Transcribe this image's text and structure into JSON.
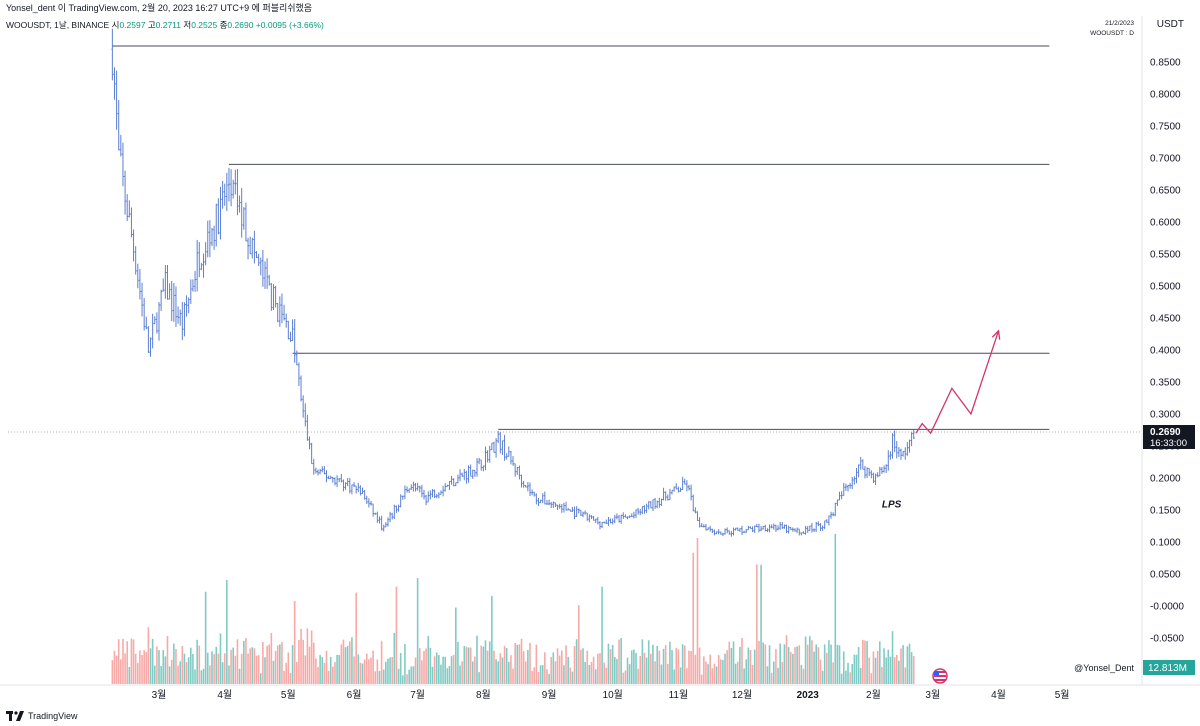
{
  "header": {
    "attribution": "Yonsel_dent 이 TradingView.com, 2월 20, 2023 16:27 UTC+9 에 퍼블리쉬했음"
  },
  "legend": {
    "symbol": "WOOUSDT, 1날, BINANCE",
    "open_label": "시",
    "open": "0.2597",
    "high_label": "고",
    "high": "0.2711",
    "low_label": "저",
    "low": "0.2525",
    "close_label": "종",
    "close": "0.2690",
    "change": "+0.0095 (+3.66%)"
  },
  "corner": {
    "date": "21/2/2023",
    "ticker": "WOOUSDT : D",
    "currency": "USDT"
  },
  "price_badge": {
    "price": "0.2690",
    "countdown": "16:33:00"
  },
  "volume_badge": "12.813M",
  "author_handle": "@Yonsel_Dent",
  "footer": {
    "brand": "TradingView"
  },
  "colors": {
    "bar": "#5b7fd1",
    "vol_up": "#80cbc4",
    "vol_down": "#f7a9a7",
    "level_line": "#4a4e5c",
    "projection": "#d6336c",
    "badge_bg": "#131722"
  },
  "chart_data": {
    "type": "ohlc-bar",
    "symbol": "WOOUSDT",
    "interval": "1D",
    "y_axis": {
      "ticks": [
        0.85,
        0.8,
        0.75,
        0.7,
        0.65,
        0.6,
        0.55,
        0.5,
        0.45,
        0.4,
        0.35,
        0.3,
        0.25,
        0.2,
        0.15,
        0.1,
        0.05,
        -0.0,
        -0.05
      ],
      "tick_labels": [
        "0.8500",
        "0.8000",
        "0.7500",
        "0.7000",
        "0.6500",
        "0.6000",
        "0.5500",
        "0.5000",
        "0.4500",
        "0.4000",
        "0.3500",
        "0.3000",
        "0.2500",
        "0.2000",
        "0.1500",
        "0.1000",
        "0.0500",
        "-0.0000",
        "-0.0500"
      ]
    },
    "x_axis": {
      "ticks": [
        "2022-03-01",
        "2022-04-01",
        "2022-05-01",
        "2022-06-01",
        "2022-07-01",
        "2022-08-01",
        "2022-09-01",
        "2022-10-01",
        "2022-11-01",
        "2022-12-01",
        "2023-01-01",
        "2023-02-01",
        "2023-03-01",
        "2023-04-01",
        "2023-05-01"
      ],
      "tick_labels": [
        "3월",
        "4월",
        "5월",
        "6월",
        "7월",
        "8월",
        "9월",
        "10월",
        "11월",
        "12월",
        "2023",
        "2월",
        "3월",
        "4월",
        "5월"
      ]
    },
    "price_path": [
      [
        "2022-02-07",
        0.87
      ],
      [
        "2022-02-10",
        0.7
      ],
      [
        "2022-02-14",
        0.62
      ],
      [
        "2022-02-18",
        0.54
      ],
      [
        "2022-02-24",
        0.4
      ],
      [
        "2022-03-04",
        0.5
      ],
      [
        "2022-03-12",
        0.44
      ],
      [
        "2022-03-20",
        0.55
      ],
      [
        "2022-03-28",
        0.6
      ],
      [
        "2022-04-03",
        0.66
      ],
      [
        "2022-04-08",
        0.62
      ],
      [
        "2022-04-16",
        0.54
      ],
      [
        "2022-04-25",
        0.47
      ],
      [
        "2022-05-03",
        0.42
      ],
      [
        "2022-05-08",
        0.3
      ],
      [
        "2022-05-13",
        0.21
      ],
      [
        "2022-05-22",
        0.2
      ],
      [
        "2022-06-04",
        0.18
      ],
      [
        "2022-06-15",
        0.12
      ],
      [
        "2022-06-27",
        0.19
      ],
      [
        "2022-07-05",
        0.17
      ],
      [
        "2022-07-20",
        0.2
      ],
      [
        "2022-07-30",
        0.22
      ],
      [
        "2022-08-08",
        0.26
      ],
      [
        "2022-08-15",
        0.22
      ],
      [
        "2022-08-25",
        0.17
      ],
      [
        "2022-09-10",
        0.15
      ],
      [
        "2022-09-25",
        0.13
      ],
      [
        "2022-10-10",
        0.14
      ],
      [
        "2022-10-25",
        0.17
      ],
      [
        "2022-11-05",
        0.19
      ],
      [
        "2022-11-10",
        0.13
      ],
      [
        "2022-11-20",
        0.115
      ],
      [
        "2022-12-05",
        0.12
      ],
      [
        "2022-12-15",
        0.125
      ],
      [
        "2022-12-28",
        0.115
      ],
      [
        "2023-01-10",
        0.13
      ],
      [
        "2023-01-18",
        0.18
      ],
      [
        "2023-01-26",
        0.22
      ],
      [
        "2023-02-02",
        0.2
      ],
      [
        "2023-02-07",
        0.22
      ],
      [
        "2023-02-10",
        0.26
      ],
      [
        "2023-02-14",
        0.23
      ],
      [
        "2023-02-17",
        0.25
      ],
      [
        "2023-02-21",
        0.269
      ]
    ],
    "horizontal_levels": [
      {
        "price": 0.875,
        "from": "2022-02-07",
        "to": "2023-04-25"
      },
      {
        "price": 0.69,
        "from": "2022-04-03",
        "to": "2023-04-25"
      },
      {
        "price": 0.395,
        "from": "2022-05-03",
        "to": "2023-04-25"
      },
      {
        "price": 0.276,
        "from": "2022-08-08",
        "to": "2023-04-25"
      }
    ],
    "projection_path": [
      [
        "2023-02-21",
        0.27
      ],
      [
        "2023-02-24",
        0.285
      ],
      [
        "2023-02-28",
        0.27
      ],
      [
        "2023-03-10",
        0.34
      ],
      [
        "2023-03-19",
        0.3
      ],
      [
        "2023-04-01",
        0.43
      ]
    ],
    "annotations": [
      {
        "text": "LPS",
        "date": "2023-02-05",
        "price": 0.16
      }
    ]
  }
}
